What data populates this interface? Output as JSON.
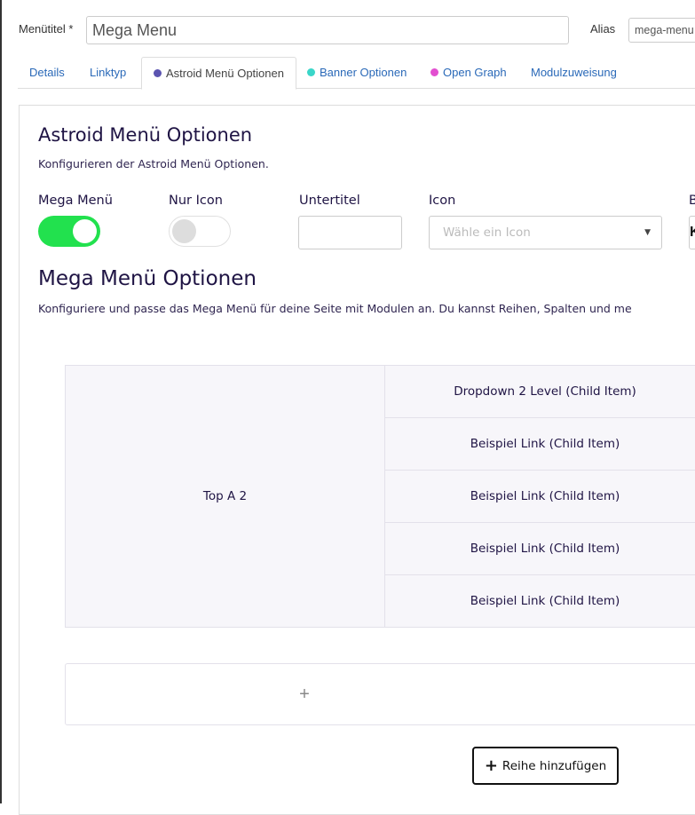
{
  "header": {
    "title_label": "Menütitel *",
    "title_value": "Mega Menu",
    "alias_label": "Alias",
    "alias_value": "mega-menu"
  },
  "tabs": [
    {
      "label": "Details"
    },
    {
      "label": "Linktyp"
    },
    {
      "label": "Astroid Menü Optionen",
      "dot": "#5b54b0",
      "active": true
    },
    {
      "label": "Banner Optionen",
      "dot": "#3ad6c9"
    },
    {
      "label": "Open Graph",
      "dot": "#e24fd0"
    },
    {
      "label": "Modulzuweisung"
    }
  ],
  "astroid": {
    "title": "Astroid Menü Optionen",
    "desc": "Konfigurieren der Astroid Menü Optionen.",
    "mega_label": "Mega Menü",
    "mega_on": true,
    "icon_only_label": "Nur Icon",
    "icon_only_on": false,
    "subtitle_label": "Untertitel",
    "subtitle_value": "",
    "icon_label": "Icon",
    "icon_placeholder": "Wähle ein Icon",
    "extra_label": "B",
    "extra_value": "K"
  },
  "mega": {
    "title": "Mega Menü Optionen",
    "desc": "Konfiguriere und passe das Mega Menü für deine Seite mit Modulen an. Du kannst Reihen, Spalten und me",
    "parent": "Top A 2",
    "children": [
      "Dropdown 2 Level (Child Item)",
      "Beispiel Link (Child Item)",
      "Beispiel Link (Child Item)",
      "Beispiel Link (Child Item)",
      "Beispiel Link (Child Item)"
    ],
    "add_symbol": "+",
    "add_row": "Reihe hinzufügen"
  },
  "colors": {
    "toggle_on": "#22e14e",
    "heading": "#1f1444"
  }
}
